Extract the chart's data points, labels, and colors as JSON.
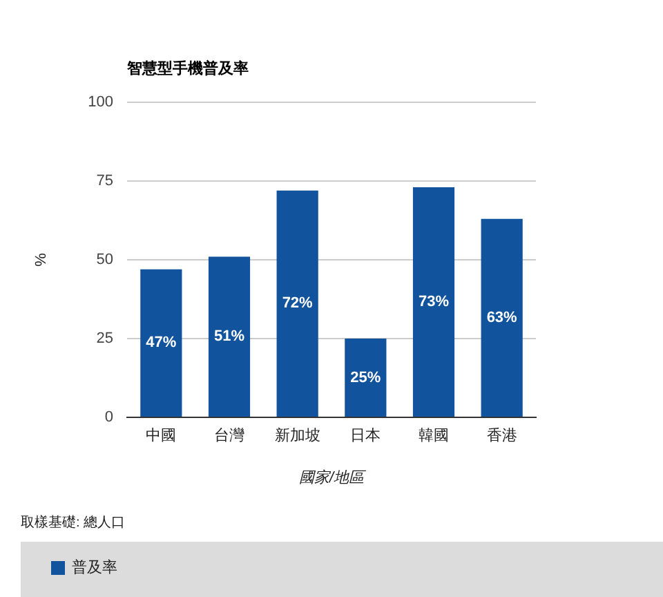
{
  "chart_data": {
    "type": "bar",
    "title": "智慧型手機普及率",
    "xlabel": "國家/地區",
    "ylabel": "%",
    "annotations": [
      "取樣基礎: 總人口"
    ],
    "categories": [
      "中國",
      "台灣",
      "新加坡",
      "日本",
      "韓國",
      "香港"
    ],
    "series": [
      {
        "name": "普及率",
        "color": "#12539e",
        "values": [
          47,
          51,
          72,
          25,
          73,
          63
        ],
        "value_labels": [
          "47%",
          "51%",
          "72%",
          "25%",
          "73%",
          "63%"
        ]
      }
    ],
    "ylim": [
      0,
      100
    ],
    "yticks": [
      0,
      25,
      50,
      75,
      100
    ],
    "grid": "y",
    "legend": "bottom"
  }
}
